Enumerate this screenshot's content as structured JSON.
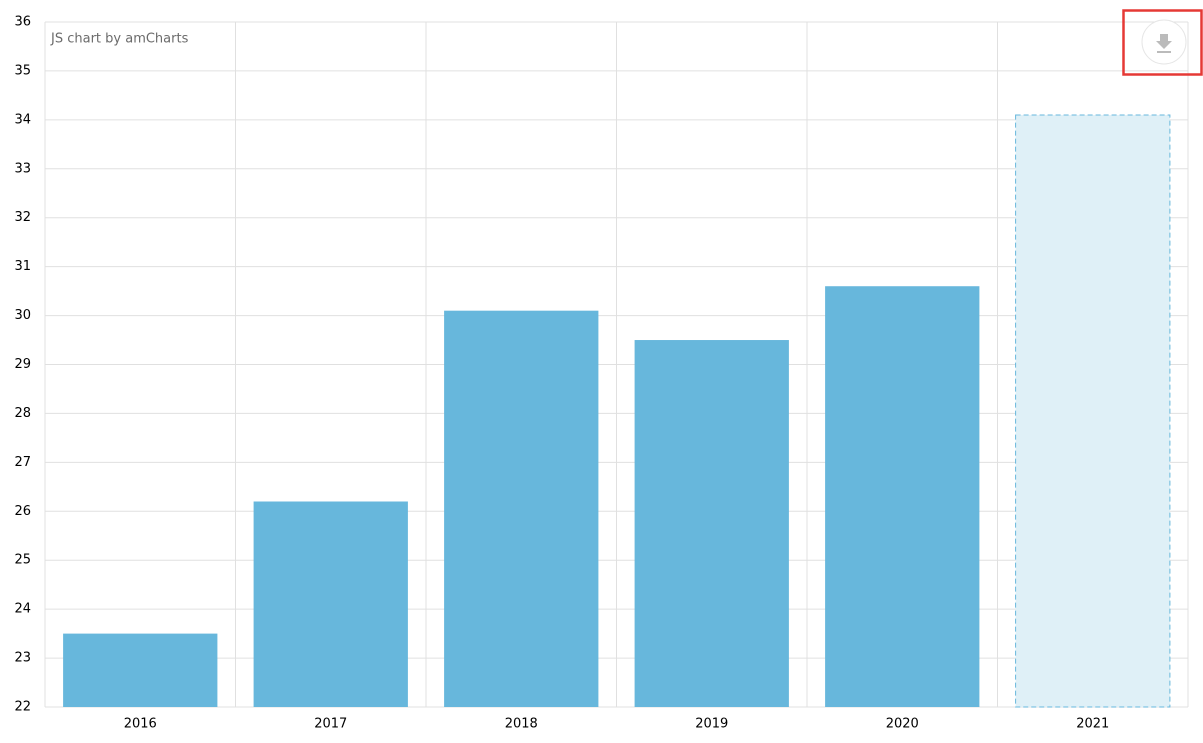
{
  "chart_data": {
    "type": "bar",
    "credit": "JS chart by amCharts",
    "categories": [
      "2016",
      "2017",
      "2018",
      "2019",
      "2020",
      "2021"
    ],
    "values": [
      23.5,
      26.2,
      30.1,
      29.5,
      30.6,
      34.1
    ],
    "colors": [
      "#67b7dc",
      "#67b7dc",
      "#67b7dc",
      "#67b7dc",
      "#67b7dc",
      "#dff0f7"
    ],
    "dashed": [
      false,
      false,
      false,
      false,
      false,
      true
    ],
    "ylim": [
      22,
      36
    ],
    "yticks": [
      22,
      23,
      24,
      25,
      26,
      27,
      28,
      29,
      30,
      31,
      32,
      33,
      34,
      35,
      36
    ],
    "grid": true
  }
}
